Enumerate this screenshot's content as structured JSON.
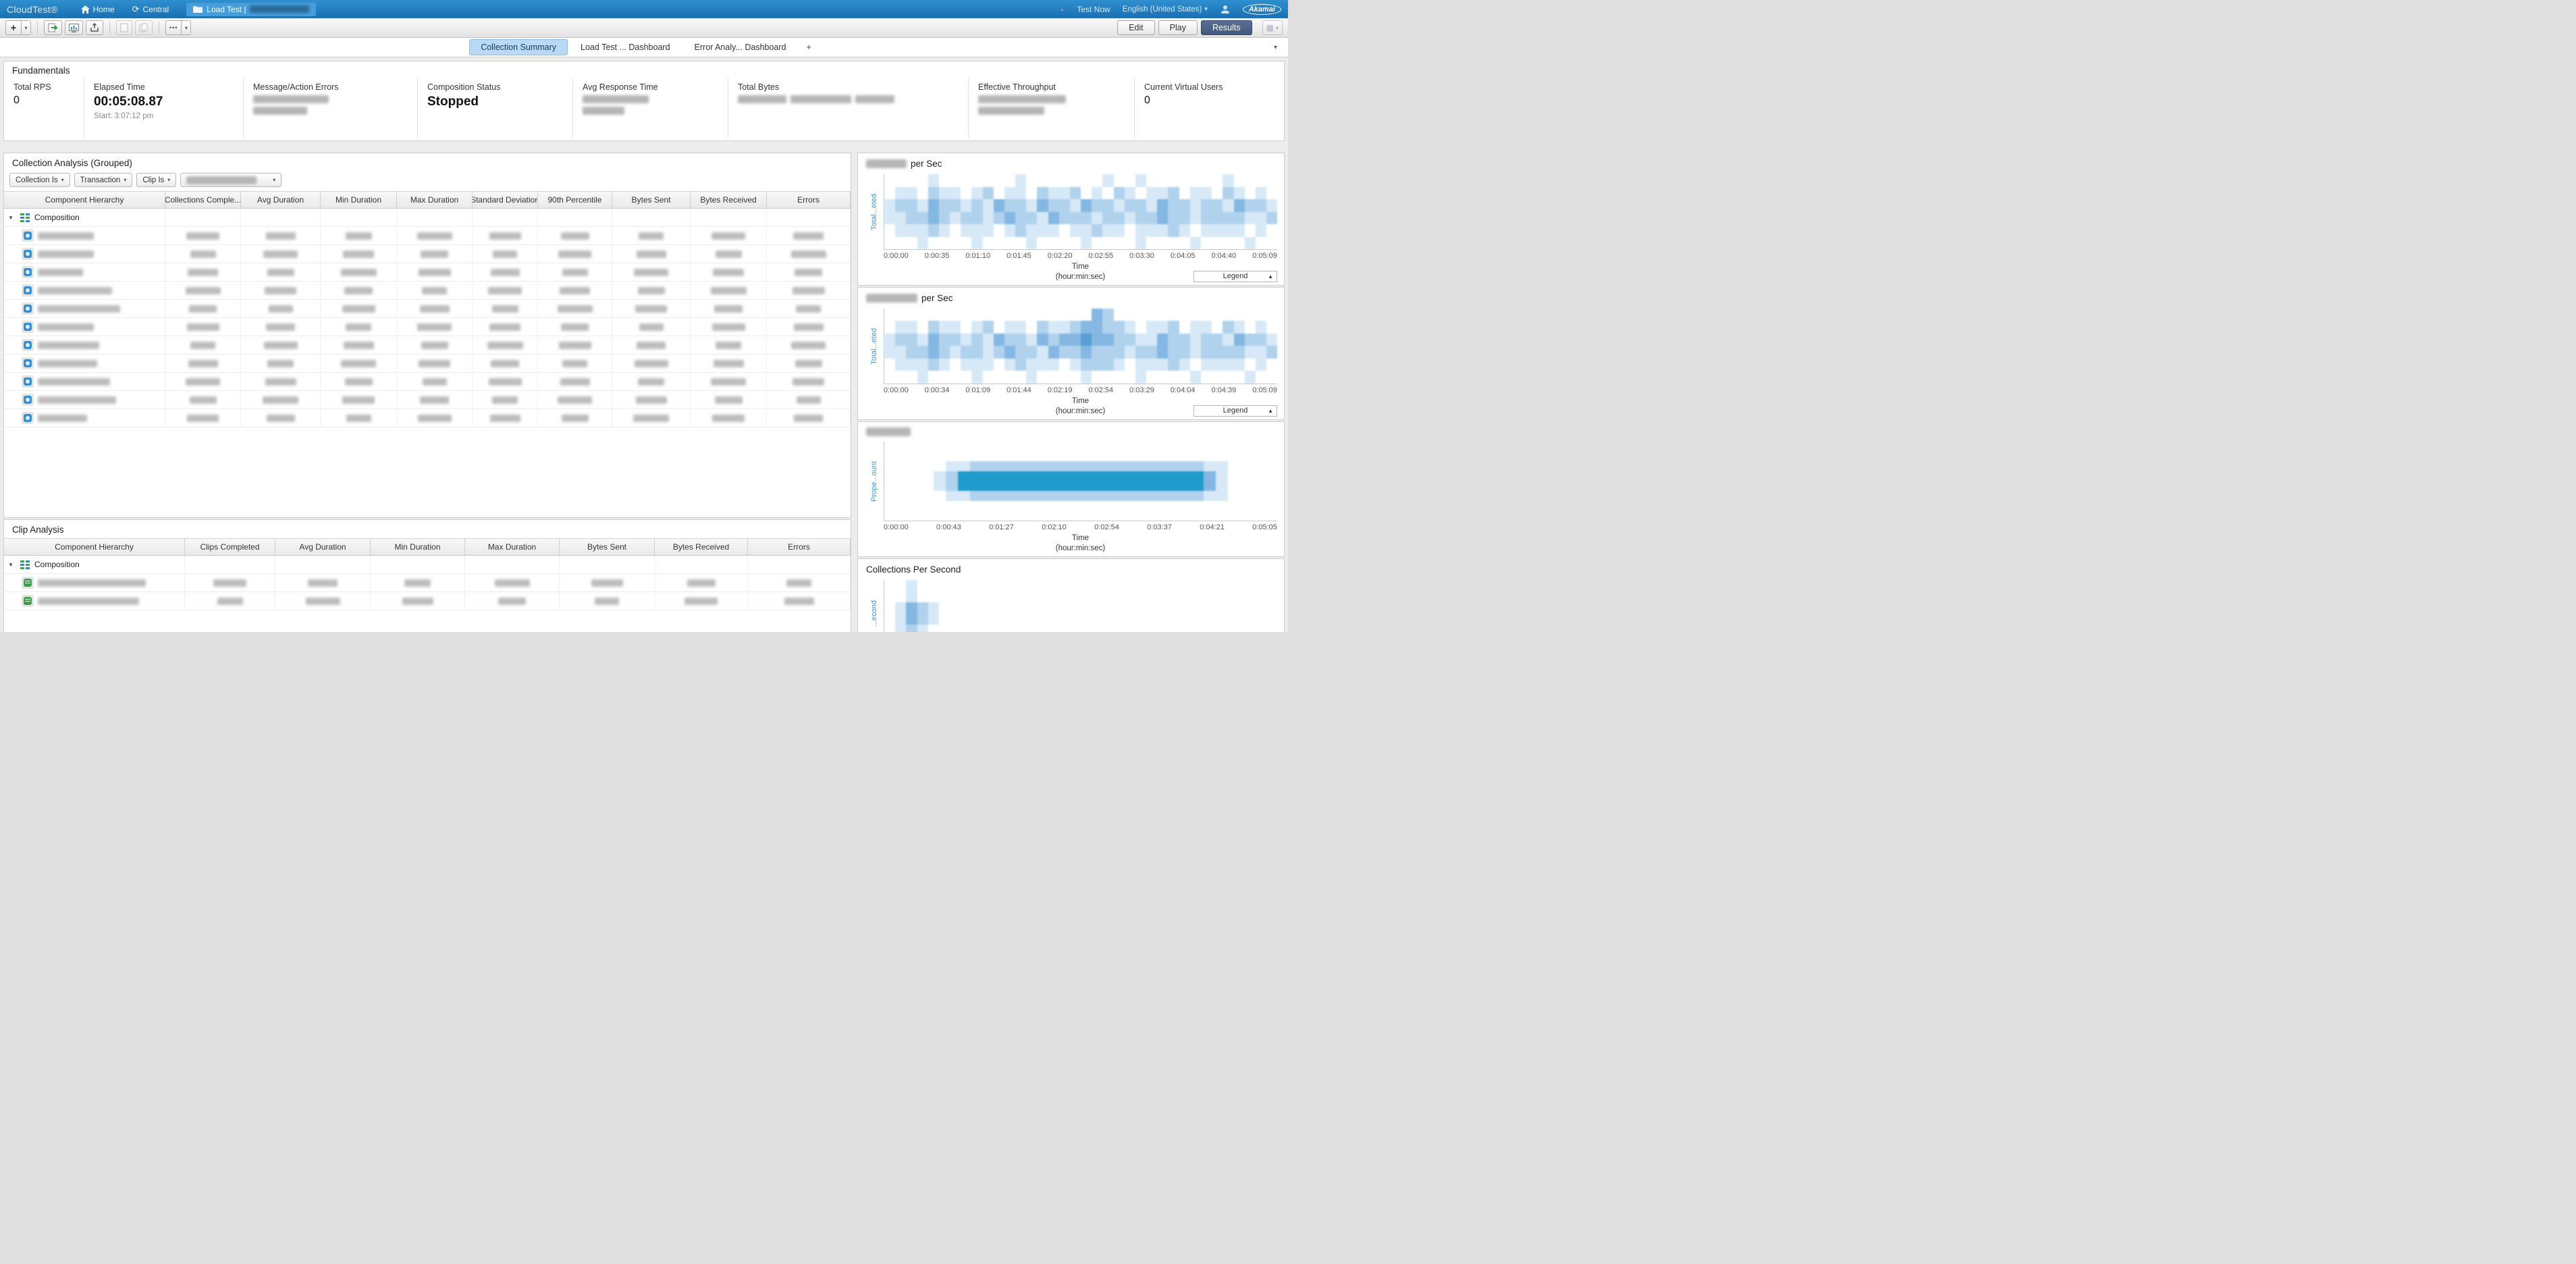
{
  "icons": {
    "caret_down": "▾",
    "chevron_down": "⌄",
    "triangle_down": "▼",
    "legend_up": "▲",
    "overflow": "•••",
    "plus": "+",
    "grid": "▦",
    "central": "⟳"
  },
  "topbar": {
    "brand": "CloudTest®",
    "home_label": "Home",
    "central_label": "Central",
    "load_test_label": "Load Test |",
    "test_now": "Test Now",
    "language": "English (United States)",
    "akamai_logo": "Akamai"
  },
  "toolbar": {
    "edit_label": "Edit",
    "play_label": "Play",
    "results_label": "Results"
  },
  "tabs": {
    "items": [
      {
        "label": "Collection Summary"
      },
      {
        "label": "Load Test ... Dashboard"
      },
      {
        "label": "Error Analy... Dashboard"
      }
    ],
    "add_label": "+"
  },
  "fundamentals": {
    "title": "Fundamentals",
    "metrics": [
      {
        "label": "Total RPS",
        "value": "0"
      },
      {
        "label": "Elapsed Time",
        "value": "00:05:08.87",
        "sub": "Start: 3:07:12 pm"
      },
      {
        "label": "Message/Action Errors",
        "redacted": true
      },
      {
        "label": "Composition Status",
        "value": "Stopped",
        "strong": true
      },
      {
        "label": "Avg Response Time",
        "redacted": true
      },
      {
        "label": "Total Bytes",
        "redacted": true
      },
      {
        "label": "Effective Throughput",
        "redacted": true
      },
      {
        "label": "Current Virtual Users",
        "value": "0"
      }
    ]
  },
  "collection_analysis": {
    "title": "Collection Analysis (Grouped)",
    "filters": [
      "Collection  Is",
      "Transaction",
      "Clip  Is"
    ],
    "columns": [
      "Component Hierarchy",
      "Collections Comple...",
      "Avg Duration",
      "Min Duration",
      "Max Duration",
      "Standard Deviation",
      "90th Percentile",
      "Bytes Sent",
      "Bytes Received",
      "Errors"
    ],
    "root_label": "Composition",
    "child_row_count": 11
  },
  "clip_analysis": {
    "title": "Clip Analysis",
    "columns": [
      "Component Hierarchy",
      "Clips Completed",
      "Avg Duration",
      "Min Duration",
      "Max Duration",
      "Bytes Sent",
      "Bytes Received",
      "Errors"
    ],
    "root_label": "Composition",
    "child_row_count": 2
  },
  "charts": [
    {
      "title": " per Sec",
      "title_redacted": true,
      "ylabel": "Total...eted",
      "xticks": [
        "0:00:00",
        "0:00:35",
        "0:01:10",
        "0:01:45",
        "0:02:20",
        "0:02:55",
        "0:03:30",
        "0:04:05",
        "0:04:40",
        "0:05:09"
      ],
      "xlabel": "Time",
      "xlabel_sub": "(hour:min:sec)",
      "legend": "Legend",
      "legend_arrow": "▲",
      "heat": [
        "000010000000100000001001000000010000",
        "011021101201102112010210112011021010",
        "122132212132213221322122132212213221",
        "112232122123221322212212232212222112",
        "011121011101211101121101112101111010",
        "000100001000010000100001000010000100"
      ]
    },
    {
      "title": " per Sec",
      "title_redacted": true,
      "ylabel": "Total...eted",
      "xticks": [
        "0:00:00",
        "0:00:34",
        "0:01:09",
        "0:01:44",
        "0:02:19",
        "0:02:54",
        "0:03:29",
        "0:04:04",
        "0:04:39",
        "0:05:09"
      ],
      "xlabel": "Time",
      "xlabel_sub": "(hour:min:sec)",
      "legend": "Legend",
      "legend_arrow": "▲",
      "heat": [
        "000000000000000000032000000000000000",
        "011021101201102112332210112011021010",
        "122132212132213233433221132212213221",
        "112232122123221322322212232212222112",
        "011121011101211101222101112101111010",
        "000100001000010000100001000010000100"
      ]
    },
    {
      "title": "",
      "title_redacted": true,
      "ylabel": "Prope...ount",
      "xticks": [
        "0:00:00",
        "0:00:43",
        "0:01:27",
        "0:02:10",
        "0:02:54",
        "0:03:37",
        "0:04:21",
        "0:05:05"
      ],
      "xlabel": "Time",
      "xlabel_sub": "(hour:min:sec)",
      "heat": [
        "00000000000000000000000000000000",
        "00000000000000000000000000000000",
        "00000112222222222222222222110000",
        "00001299999999999999999999310000",
        "00001299999999999999999999310000",
        "00000112222222222222222222110000",
        "00000000000000000000000000000000",
        "00000000000000000000000000000000"
      ]
    },
    {
      "title": "Collections Per Second",
      "title_redacted": false,
      "ylabel": "...econd",
      "xticks": [],
      "heat": [
        "001000000000000000000000000000000000",
        "013210000000000000000000000000000000",
        "012100000000000000000000000000000000"
      ]
    }
  ]
}
